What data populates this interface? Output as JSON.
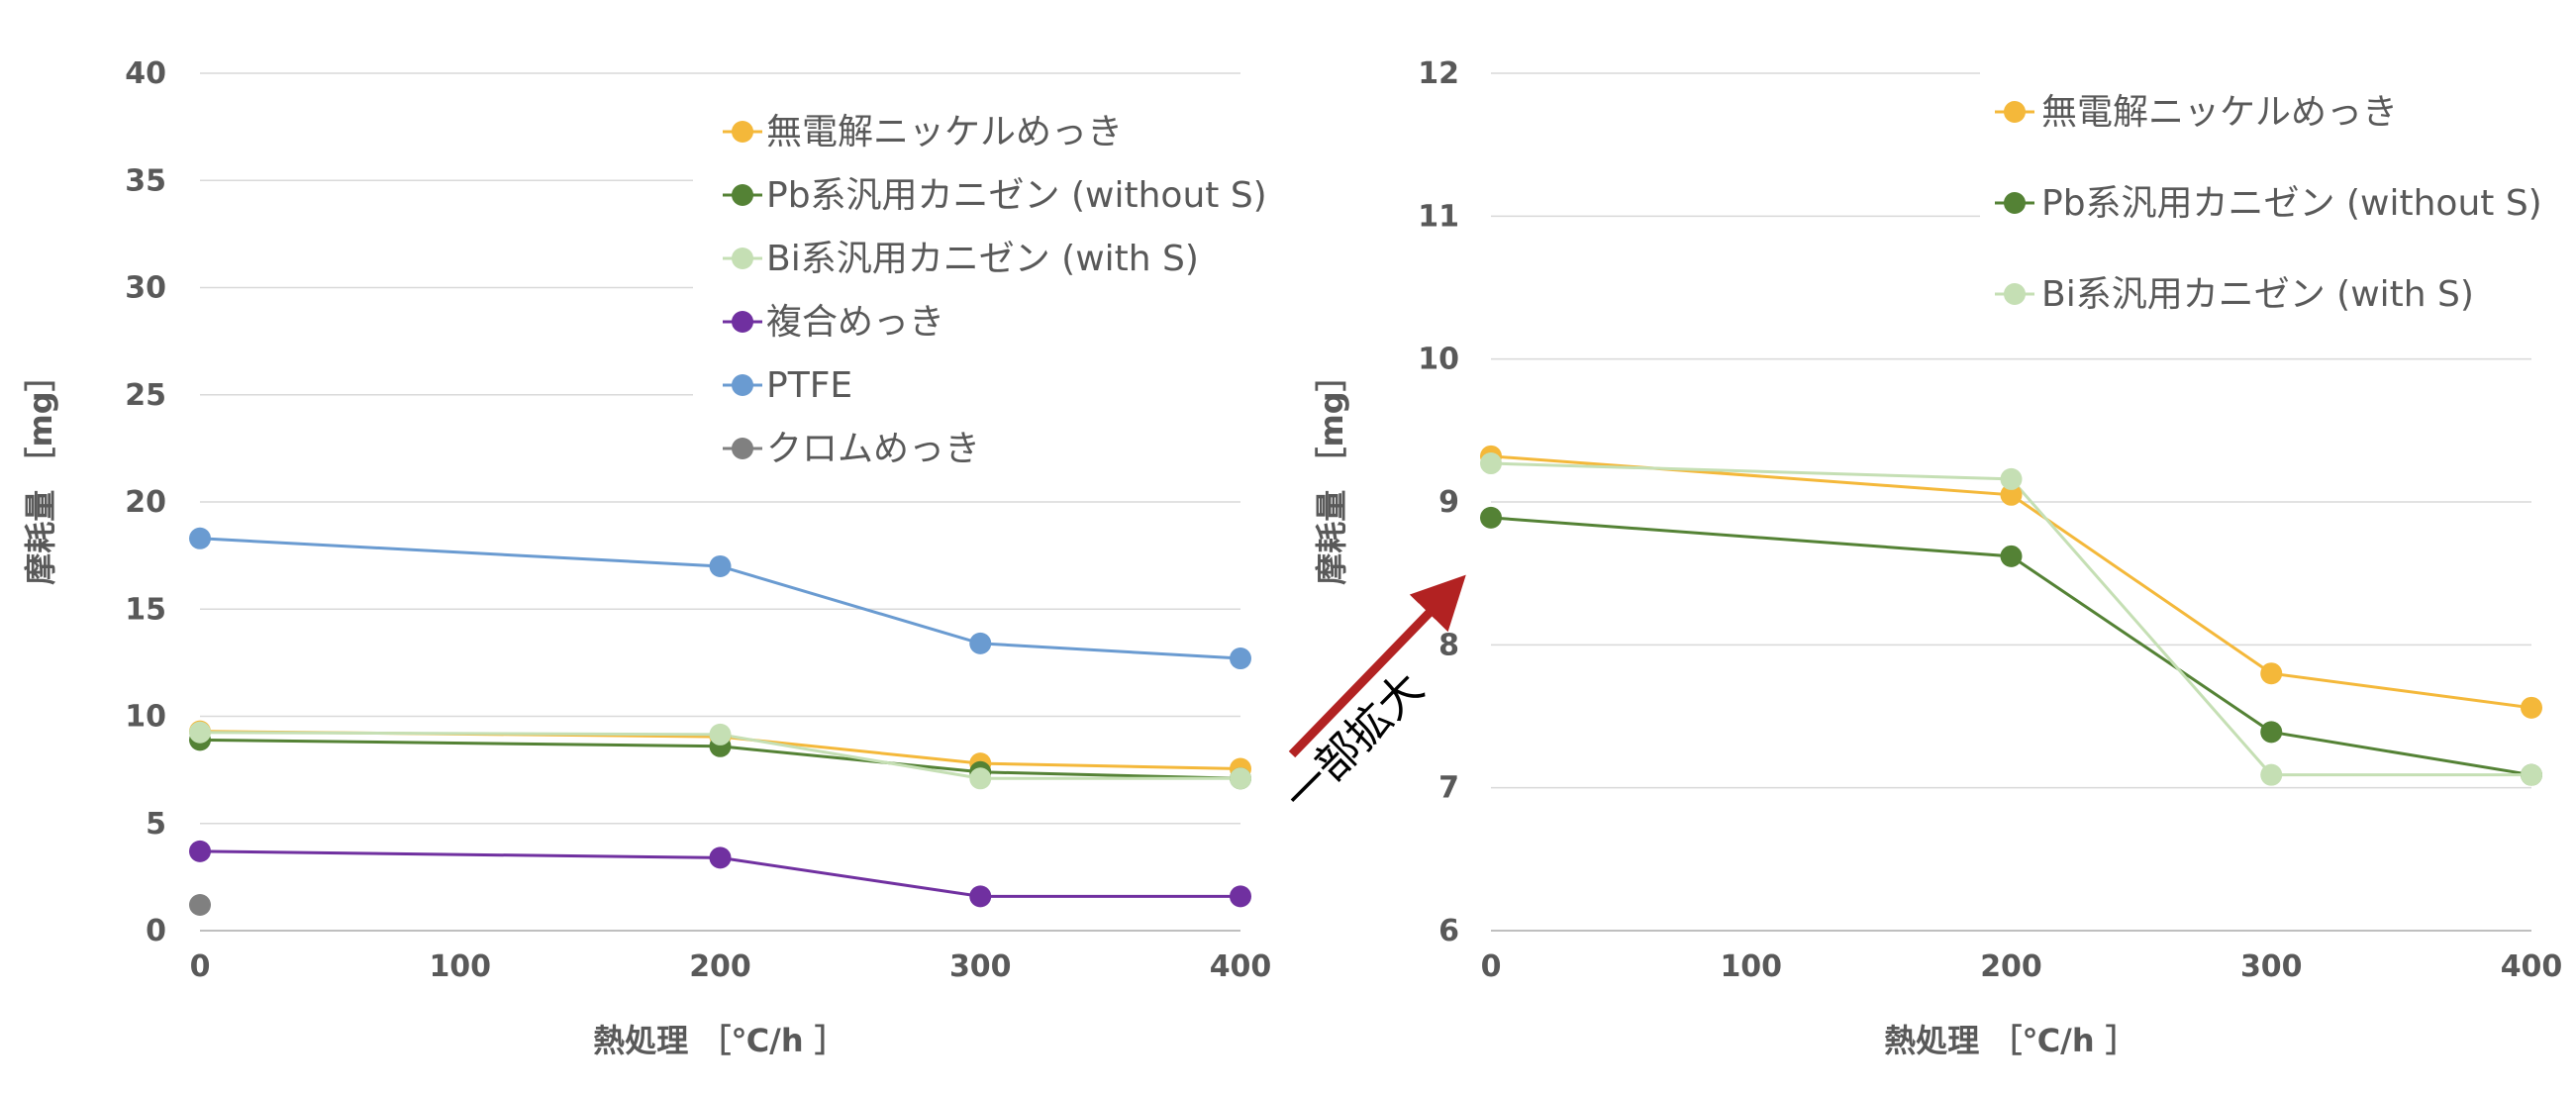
{
  "callout": {
    "text": "一部拡大",
    "color": "#B22222"
  },
  "chart_data": [
    {
      "type": "line",
      "x": [
        0,
        200,
        300,
        400
      ],
      "xticks": [
        0,
        100,
        200,
        300,
        400
      ],
      "xlim": [
        0,
        400
      ],
      "ylim": [
        0,
        40
      ],
      "yticks": [
        0,
        5,
        10,
        15,
        20,
        25,
        30,
        35,
        40
      ],
      "xlabel": "熱処理 ［℃/h ］",
      "ylabel": "摩耗量 ［mg］",
      "grid": true,
      "legend": "top-right",
      "series": [
        {
          "name": "無電解ニッケルめっき",
          "color": "#F4B83A",
          "values": [
            9.3,
            9.05,
            7.8,
            7.55
          ]
        },
        {
          "name": "Pb系汎用カニゼン (without S)",
          "color": "#548235",
          "values": [
            8.9,
            8.6,
            7.4,
            7.1
          ]
        },
        {
          "name": "Bi系汎用カニゼン (with S)",
          "color": "#C5DFB4",
          "values": [
            9.25,
            9.15,
            7.1,
            7.1
          ]
        },
        {
          "name": "複合めっき",
          "color": "#7030A0",
          "values": [
            3.7,
            3.4,
            1.6,
            1.6
          ]
        },
        {
          "name": "PTFE",
          "color": "#6A9BD1",
          "values": [
            18.3,
            17.0,
            13.4,
            12.7
          ]
        },
        {
          "name": "クロムめっき",
          "color": "#808080",
          "values": [
            1.2,
            null,
            null,
            null
          ]
        }
      ]
    },
    {
      "type": "line",
      "x": [
        0,
        200,
        300,
        400
      ],
      "xticks": [
        0,
        100,
        200,
        300,
        400
      ],
      "xlim": [
        0,
        400
      ],
      "ylim": [
        6,
        12
      ],
      "yticks": [
        6,
        7,
        8,
        9,
        10,
        11,
        12
      ],
      "xlabel": "熱処理 ［℃/h ］",
      "ylabel": "摩耗量 ［mg］",
      "grid": true,
      "legend": "top-right",
      "series": [
        {
          "name": "無電解ニッケルめっき",
          "color": "#F4B83A",
          "values": [
            9.32,
            9.05,
            7.8,
            7.56
          ]
        },
        {
          "name": "Pb系汎用カニゼン (without S)",
          "color": "#548235",
          "values": [
            8.89,
            8.62,
            7.39,
            7.09
          ]
        },
        {
          "name": "Bi系汎用カニゼン (with S)",
          "color": "#C5DFB4",
          "values": [
            9.27,
            9.16,
            7.09,
            7.09
          ]
        }
      ]
    }
  ]
}
